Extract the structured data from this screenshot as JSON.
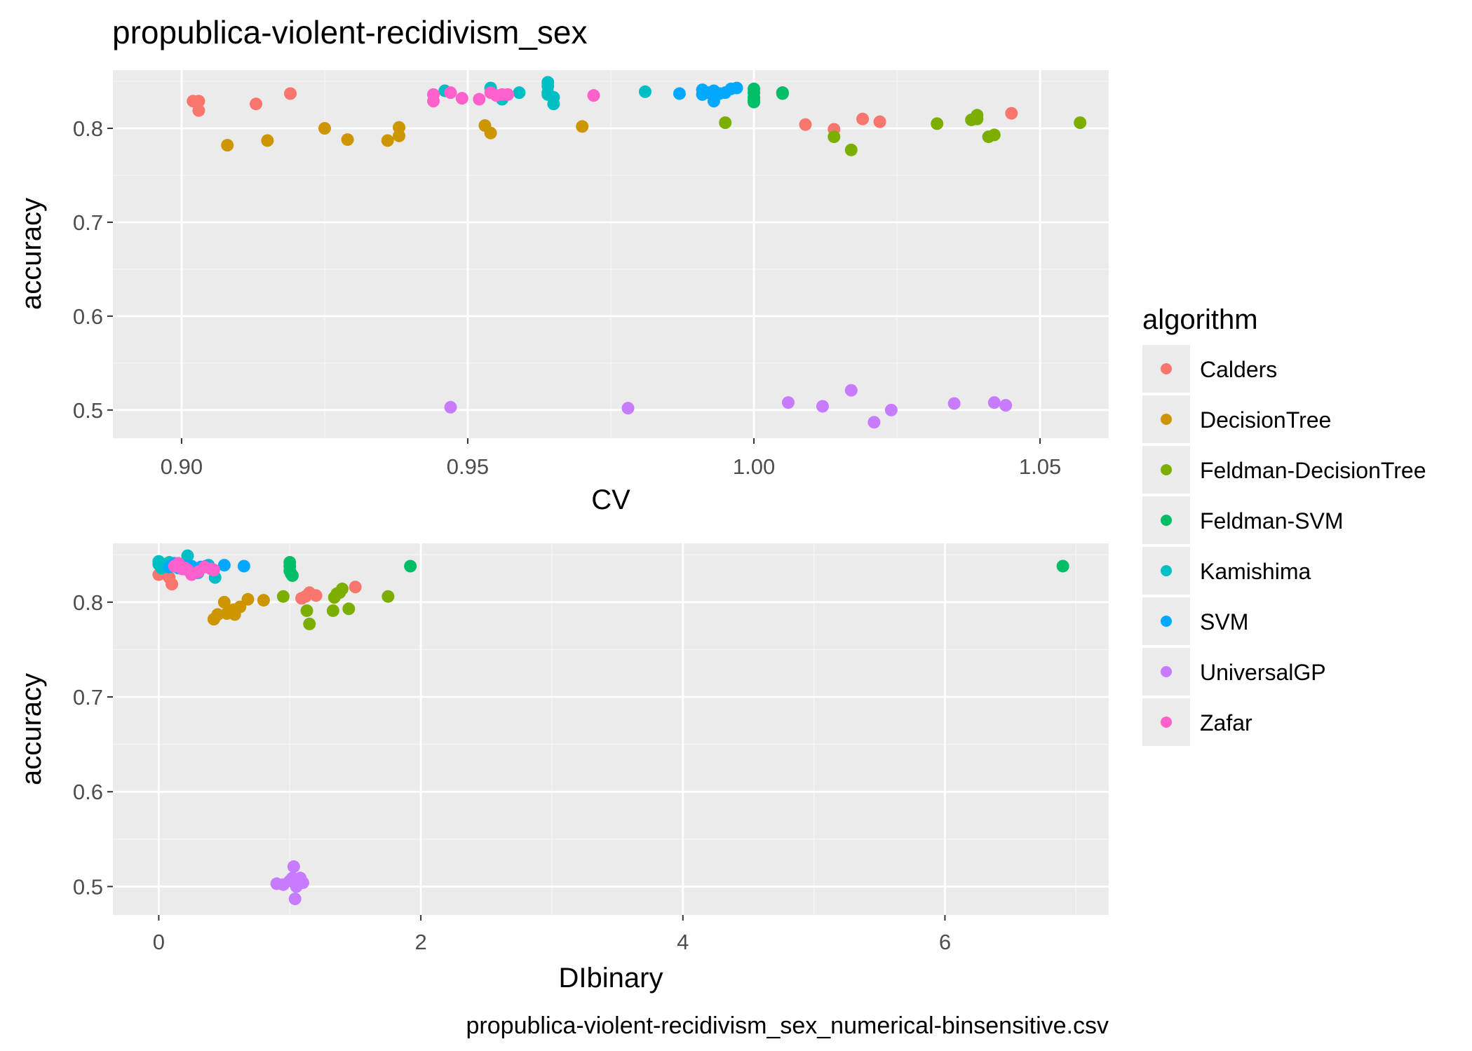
{
  "title": "propublica-violent-recidivism_sex",
  "caption": "propublica-violent-recidivism_sex_numerical-binsensitive.csv",
  "legend": {
    "title": "algorithm",
    "entries": [
      {
        "label": "Calders",
        "color": "#F8766D"
      },
      {
        "label": "DecisionTree",
        "color": "#CD9600"
      },
      {
        "label": "Feldman-DecisionTree",
        "color": "#7CAE00"
      },
      {
        "label": "Feldman-SVM",
        "color": "#00BE67"
      },
      {
        "label": "Kamishima",
        "color": "#00BFC4"
      },
      {
        "label": "SVM",
        "color": "#00A9FF"
      },
      {
        "label": "UniversalGP",
        "color": "#C77CFF"
      },
      {
        "label": "Zafar",
        "color": "#FF61CC"
      }
    ]
  },
  "chart_data": [
    {
      "type": "scatter",
      "xlabel": "CV",
      "ylabel": "accuracy",
      "xlim": [
        0.888,
        1.062
      ],
      "ylim": [
        0.47,
        0.862
      ],
      "xticks": [
        0.9,
        0.95,
        1.0,
        1.05
      ],
      "xtick_labels": [
        "0.90",
        "0.95",
        "1.00",
        "1.05"
      ],
      "yticks": [
        0.5,
        0.6,
        0.7,
        0.8
      ],
      "ytick_labels": [
        "0.5",
        "0.6",
        "0.7",
        "0.8"
      ],
      "grid": true,
      "series": [
        {
          "name": "Calders",
          "points": [
            [
              0.902,
              0.829
            ],
            [
              0.903,
              0.829
            ],
            [
              0.903,
              0.819
            ],
            [
              0.913,
              0.826
            ],
            [
              0.919,
              0.837
            ],
            [
              1.009,
              0.804
            ],
            [
              1.014,
              0.799
            ],
            [
              1.019,
              0.81
            ],
            [
              1.022,
              0.807
            ],
            [
              1.045,
              0.816
            ]
          ]
        },
        {
          "name": "DecisionTree",
          "points": [
            [
              0.908,
              0.782
            ],
            [
              0.915,
              0.787
            ],
            [
              0.925,
              0.8
            ],
            [
              0.929,
              0.788
            ],
            [
              0.936,
              0.787
            ],
            [
              0.938,
              0.792
            ],
            [
              0.938,
              0.801
            ],
            [
              0.953,
              0.803
            ],
            [
              0.954,
              0.795
            ],
            [
              0.97,
              0.802
            ]
          ]
        },
        {
          "name": "Feldman-DecisionTree",
          "points": [
            [
              0.995,
              0.806
            ],
            [
              1.014,
              0.791
            ],
            [
              1.017,
              0.777
            ],
            [
              1.032,
              0.805
            ],
            [
              1.038,
              0.809
            ],
            [
              1.039,
              0.81
            ],
            [
              1.039,
              0.814
            ],
            [
              1.041,
              0.791
            ],
            [
              1.042,
              0.793
            ],
            [
              1.057,
              0.806
            ]
          ]
        },
        {
          "name": "Feldman-SVM",
          "points": [
            [
              1.0,
              0.838
            ],
            [
              1.0,
              0.833
            ],
            [
              1.0,
              0.842
            ],
            [
              1.0,
              0.828
            ],
            [
              1.0,
              0.83
            ],
            [
              1.005,
              0.838
            ],
            [
              1.005,
              0.838
            ],
            [
              1.005,
              0.837
            ]
          ]
        },
        {
          "name": "Kamishima",
          "points": [
            [
              0.946,
              0.84
            ],
            [
              0.954,
              0.843
            ],
            [
              0.956,
              0.831
            ],
            [
              0.959,
              0.838
            ],
            [
              0.964,
              0.836
            ],
            [
              0.964,
              0.838
            ],
            [
              0.964,
              0.845
            ],
            [
              0.964,
              0.849
            ],
            [
              0.965,
              0.833
            ],
            [
              0.965,
              0.826
            ],
            [
              0.981,
              0.839
            ]
          ]
        },
        {
          "name": "SVM",
          "points": [
            [
              0.987,
              0.837
            ],
            [
              0.991,
              0.841
            ],
            [
              0.991,
              0.836
            ],
            [
              0.992,
              0.838
            ],
            [
              0.993,
              0.84
            ],
            [
              0.993,
              0.829
            ],
            [
              0.994,
              0.837
            ],
            [
              0.995,
              0.838
            ],
            [
              0.996,
              0.842
            ],
            [
              0.997,
              0.843
            ]
          ]
        },
        {
          "name": "UniversalGP",
          "points": [
            [
              0.947,
              0.503
            ],
            [
              0.978,
              0.502
            ],
            [
              1.006,
              0.508
            ],
            [
              1.012,
              0.504
            ],
            [
              1.017,
              0.521
            ],
            [
              1.021,
              0.487
            ],
            [
              1.024,
              0.5
            ],
            [
              1.035,
              0.507
            ],
            [
              1.042,
              0.508
            ],
            [
              1.044,
              0.505
            ]
          ]
        },
        {
          "name": "Zafar",
          "points": [
            [
              0.944,
              0.829
            ],
            [
              0.944,
              0.836
            ],
            [
              0.947,
              0.838
            ],
            [
              0.949,
              0.832
            ],
            [
              0.952,
              0.831
            ],
            [
              0.954,
              0.838
            ],
            [
              0.955,
              0.835
            ],
            [
              0.956,
              0.836
            ],
            [
              0.957,
              0.836
            ],
            [
              0.972,
              0.835
            ]
          ]
        }
      ]
    },
    {
      "type": "scatter",
      "xlabel": "DIbinary",
      "ylabel": "accuracy",
      "xlim": [
        -0.35,
        7.25
      ],
      "ylim": [
        0.47,
        0.862
      ],
      "xticks": [
        0,
        2,
        4,
        6
      ],
      "xtick_labels": [
        "0",
        "2",
        "4",
        "6"
      ],
      "yticks": [
        0.5,
        0.6,
        0.7,
        0.8
      ],
      "ytick_labels": [
        "0.5",
        "0.6",
        "0.7",
        "0.8"
      ],
      "grid": true,
      "series": [
        {
          "name": "Calders",
          "points": [
            [
              0.0,
              0.829
            ],
            [
              0.05,
              0.83
            ],
            [
              0.08,
              0.826
            ],
            [
              0.1,
              0.819
            ],
            [
              0.2,
              0.837
            ],
            [
              1.09,
              0.804
            ],
            [
              1.12,
              0.806
            ],
            [
              1.15,
              0.81
            ],
            [
              1.2,
              0.807
            ],
            [
              1.5,
              0.816
            ]
          ]
        },
        {
          "name": "DecisionTree",
          "points": [
            [
              0.42,
              0.782
            ],
            [
              0.45,
              0.787
            ],
            [
              0.5,
              0.8
            ],
            [
              0.52,
              0.788
            ],
            [
              0.55,
              0.79
            ],
            [
              0.57,
              0.792
            ],
            [
              0.58,
              0.787
            ],
            [
              0.62,
              0.795
            ],
            [
              0.68,
              0.803
            ],
            [
              0.8,
              0.802
            ]
          ]
        },
        {
          "name": "Feldman-DecisionTree",
          "points": [
            [
              0.95,
              0.806
            ],
            [
              1.13,
              0.791
            ],
            [
              1.15,
              0.777
            ],
            [
              1.33,
              0.791
            ],
            [
              1.34,
              0.805
            ],
            [
              1.36,
              0.809
            ],
            [
              1.38,
              0.81
            ],
            [
              1.4,
              0.814
            ],
            [
              1.45,
              0.793
            ],
            [
              1.75,
              0.806
            ]
          ]
        },
        {
          "name": "Feldman-SVM",
          "points": [
            [
              1.0,
              0.842
            ],
            [
              1.0,
              0.838
            ],
            [
              1.0,
              0.833
            ],
            [
              1.01,
              0.83
            ],
            [
              1.02,
              0.828
            ],
            [
              1.92,
              0.838
            ],
            [
              6.9,
              0.838
            ]
          ]
        },
        {
          "name": "Kamishima",
          "points": [
            [
              0.0,
              0.84
            ],
            [
              0.0,
              0.843
            ],
            [
              0.02,
              0.836
            ],
            [
              0.03,
              0.838
            ],
            [
              0.05,
              0.84
            ],
            [
              0.08,
              0.842
            ],
            [
              0.12,
              0.838
            ],
            [
              0.22,
              0.849
            ],
            [
              0.3,
              0.831
            ],
            [
              0.38,
              0.839
            ],
            [
              0.43,
              0.826
            ]
          ]
        },
        {
          "name": "SVM",
          "points": [
            [
              0.08,
              0.837
            ],
            [
              0.12,
              0.841
            ],
            [
              0.15,
              0.836
            ],
            [
              0.2,
              0.838
            ],
            [
              0.25,
              0.838
            ],
            [
              0.28,
              0.831
            ],
            [
              0.32,
              0.837
            ],
            [
              0.36,
              0.838
            ],
            [
              0.5,
              0.839
            ],
            [
              0.65,
              0.838
            ]
          ]
        },
        {
          "name": "UniversalGP",
          "points": [
            [
              0.9,
              0.503
            ],
            [
              0.95,
              0.502
            ],
            [
              1.0,
              0.506
            ],
            [
              1.02,
              0.509
            ],
            [
              1.03,
              0.521
            ],
            [
              1.04,
              0.487
            ],
            [
              1.05,
              0.5
            ],
            [
              1.06,
              0.505
            ],
            [
              1.08,
              0.509
            ],
            [
              1.1,
              0.504
            ]
          ]
        },
        {
          "name": "Zafar",
          "points": [
            [
              0.12,
              0.838
            ],
            [
              0.15,
              0.841
            ],
            [
              0.18,
              0.835
            ],
            [
              0.2,
              0.836
            ],
            [
              0.22,
              0.834
            ],
            [
              0.25,
              0.829
            ],
            [
              0.3,
              0.832
            ],
            [
              0.35,
              0.837
            ],
            [
              0.4,
              0.835
            ],
            [
              0.42,
              0.834
            ]
          ]
        }
      ]
    }
  ]
}
